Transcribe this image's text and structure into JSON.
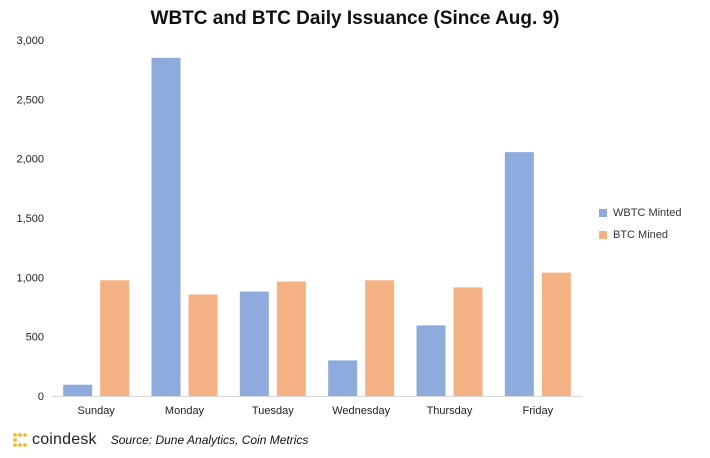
{
  "colors": {
    "wbtc": "#8FAADC",
    "btc": "#F4B183",
    "logo": "#F7B733"
  },
  "footer": {
    "logo_text": "coindesk",
    "source": "Source: Dune Analytics, Coin Metrics"
  },
  "chart_data": {
    "type": "bar",
    "title": "WBTC and BTC Daily Issuance (Since Aug. 9)",
    "xlabel": "",
    "ylabel": "",
    "categories": [
      "Sunday",
      "Monday",
      "Tuesday",
      "Wednesday",
      "Thursday",
      "Friday"
    ],
    "series": [
      {
        "name": "WBTC Minted",
        "values": [
          95,
          2850,
          880,
          300,
          595,
          2055
        ]
      },
      {
        "name": "BTC Mined",
        "values": [
          975,
          855,
          965,
          975,
          915,
          1040
        ]
      }
    ],
    "ylim": [
      0,
      3000
    ],
    "yticks": [
      0,
      500,
      1000,
      1500,
      2000,
      2500,
      3000
    ],
    "ytick_labels": [
      "0",
      "500",
      "1,000",
      "1,500",
      "2,000",
      "2,500",
      "3,000"
    ],
    "grid": false,
    "legend_position": "right"
  }
}
